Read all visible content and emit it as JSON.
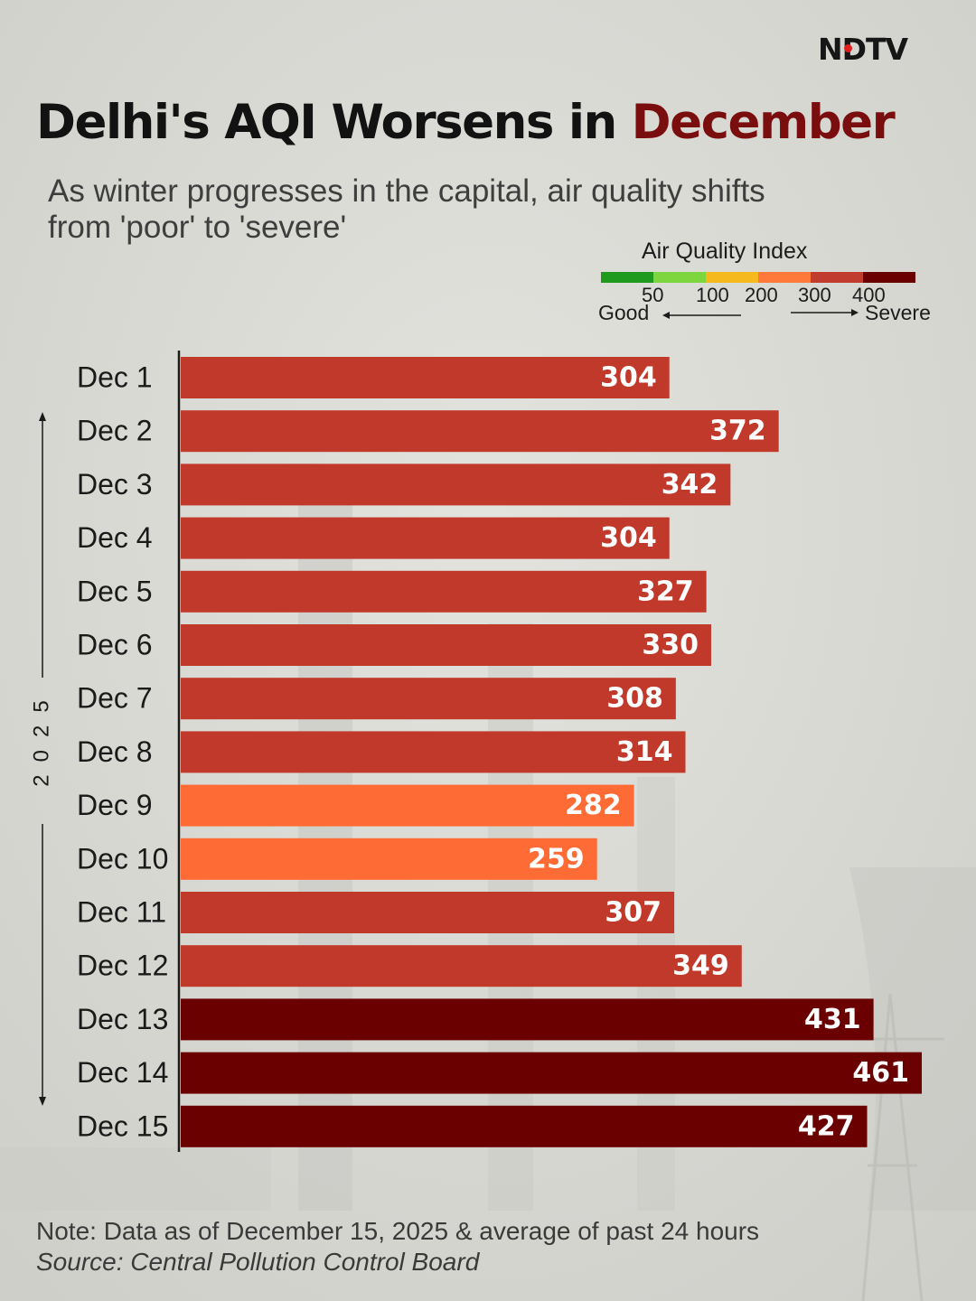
{
  "brand": {
    "logo_text": "NDTV"
  },
  "header": {
    "title_main": "Delhi's AQI Worsens in",
    "title_highlight": "December",
    "subtitle": "As winter progresses in the capital, air quality shifts from 'poor' to 'severe'"
  },
  "legend": {
    "title": "Air Quality Index",
    "ticks": [
      "50",
      "100",
      "200",
      "300",
      "400"
    ],
    "left_label": "Good",
    "right_label": "Severe",
    "colors": [
      "#1f9a1f",
      "#7ed63f",
      "#f6b91d",
      "#ff7a3a",
      "#c13b2e",
      "#6a0000"
    ]
  },
  "colors": {
    "very_poor": "#c0392b",
    "poor": "#ff6b35",
    "severe": "#6b0000"
  },
  "year_label": "2025",
  "chart_data": {
    "type": "bar",
    "orientation": "horizontal",
    "title": "Delhi's AQI Worsens in December",
    "categories": [
      "Dec 1",
      "Dec 2",
      "Dec 3",
      "Dec 4",
      "Dec 5",
      "Dec 6",
      "Dec 7",
      "Dec 8",
      "Dec 9",
      "Dec 10",
      "Dec 11",
      "Dec 12",
      "Dec 13",
      "Dec 14",
      "Dec 15"
    ],
    "values": [
      304,
      372,
      342,
      304,
      327,
      330,
      308,
      314,
      282,
      259,
      307,
      349,
      431,
      461,
      427
    ],
    "xlabel": "",
    "ylabel": "",
    "xlim": [
      0,
      461
    ],
    "grid": false,
    "legend_position": "top-right"
  },
  "footer": {
    "note": "Note: Data as of December 15, 2025 & average of past 24 hours",
    "source": "Source: Central Pollution Control Board"
  }
}
